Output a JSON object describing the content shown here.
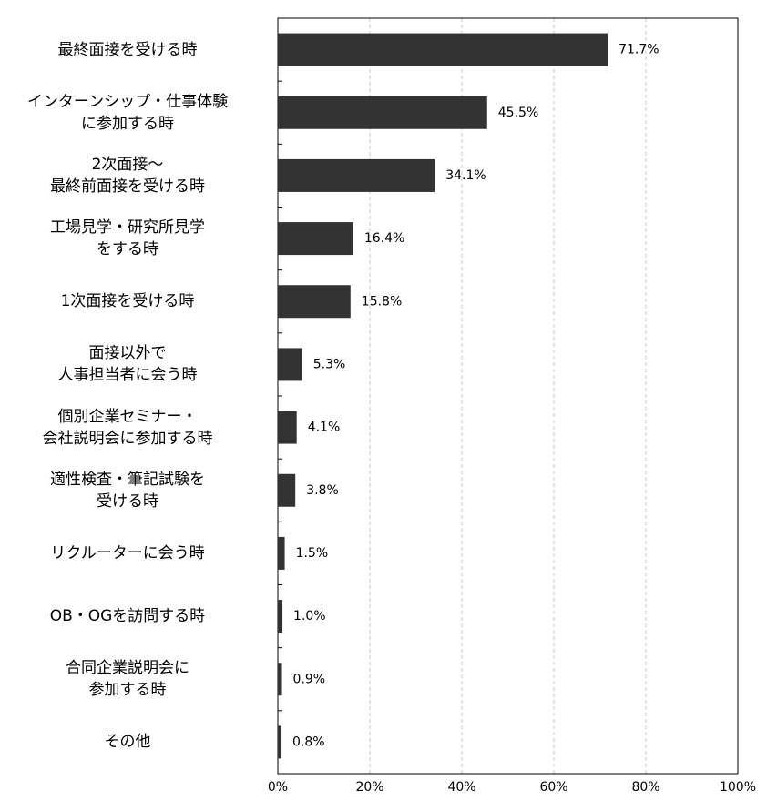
{
  "chart_data": {
    "type": "bar",
    "orientation": "horizontal",
    "categories": [
      "最終面接を受ける時",
      "インターンシップ・仕事体験\nに参加する時",
      "2次面接～\n最終前面接を受ける時",
      "工場見学・研究所見学\nをする時",
      "1次面接を受ける時",
      "面接以外で\n人事担当者に会う時",
      "個別企業セミナー・\n会社説明会に参加する時",
      "適性検査・筆記試験を\n受ける時",
      "リクルーターに会う時",
      "OB・OGを訪問する時",
      "合同企業説明会に\n参加する時",
      "その他"
    ],
    "values": [
      71.7,
      45.5,
      34.1,
      16.4,
      15.8,
      5.3,
      4.1,
      3.8,
      1.5,
      1.0,
      0.9,
      0.8
    ],
    "value_labels": [
      "71.7%",
      "45.5%",
      "34.1%",
      "16.4%",
      "15.8%",
      "5.3%",
      "4.1%",
      "3.8%",
      "1.5%",
      "1.0%",
      "0.9%",
      "0.8%"
    ],
    "color": "#333333",
    "xlim": [
      0,
      100
    ],
    "xticks": [
      {
        "value": 0,
        "label": "0%"
      },
      {
        "value": 20,
        "label": "20%"
      },
      {
        "value": 40,
        "label": "40%"
      },
      {
        "value": 60,
        "label": "60%"
      },
      {
        "value": 80,
        "label": "80%"
      },
      {
        "value": 100,
        "label": "100%"
      }
    ],
    "grid": true
  }
}
